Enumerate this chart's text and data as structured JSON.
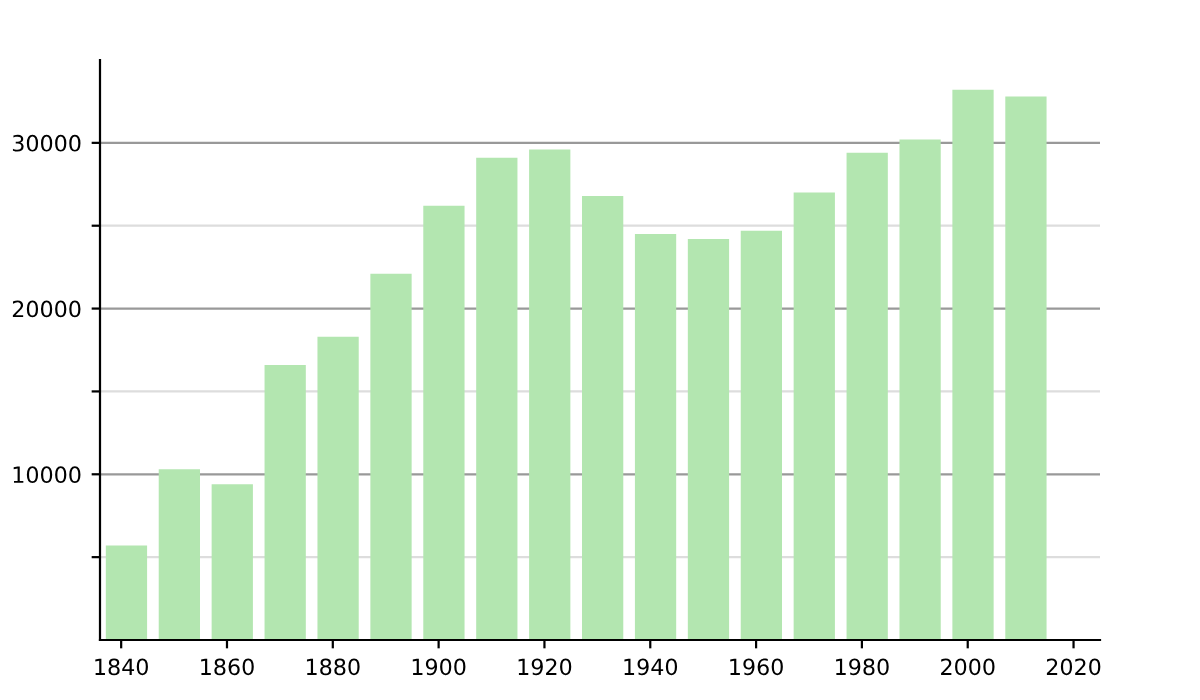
{
  "chart_data": {
    "type": "bar",
    "x": [
      1841,
      1851,
      1861,
      1871,
      1881,
      1891,
      1901,
      1911,
      1921,
      1931,
      1941,
      1951,
      1961,
      1971,
      1981,
      1991,
      2001,
      2011
    ],
    "values": [
      5700,
      10300,
      9400,
      16600,
      18300,
      22100,
      26200,
      29100,
      29600,
      26800,
      24500,
      24200,
      24700,
      27000,
      29400,
      30200,
      33200,
      32800
    ],
    "color": "#b3e6b0",
    "xlim": [
      1836,
      2025
    ],
    "xticks": [
      1840,
      1860,
      1880,
      1900,
      1920,
      1940,
      1960,
      1980,
      2000,
      2020
    ],
    "ylim": [
      0,
      35000
    ],
    "yticks": [
      {
        "value": 5000,
        "label": null
      },
      10000,
      {
        "value": 15000,
        "label": null
      },
      20000,
      {
        "value": 25000,
        "label": null
      },
      30000
    ],
    "grid": "y"
  }
}
